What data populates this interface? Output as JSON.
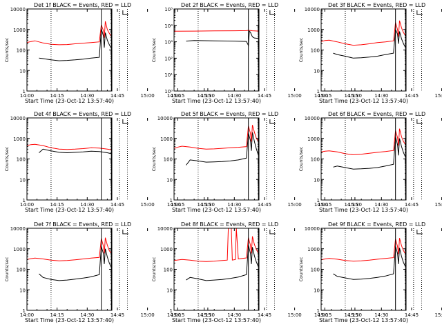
{
  "figure": {
    "x_ticks": [
      "14:00",
      "14:15",
      "14:30",
      "14:45",
      "15:00",
      "15:15",
      "15:30"
    ],
    "ylabel": "Counts/sec",
    "xlabel": "Start Time (23-Oct-12 13:57:40)"
  },
  "colors": {
    "events": "#000000",
    "lld": "#ff0000",
    "axes": "#000000"
  },
  "chart_data": [
    {
      "type": "line",
      "title": "Det 1f BLACK = Events, RED = LLD",
      "y_scale": "log",
      "ylim": [
        1,
        10000
      ],
      "yticks": [
        "1",
        "10",
        "100",
        "1000",
        "10000"
      ],
      "y_tick_values": [
        1,
        10,
        100,
        1000,
        10000
      ],
      "x_range_min": [
        0,
        42
      ],
      "dotted_lines_min": [
        12,
        46,
        50
      ],
      "solid_lines_min": [
        37,
        42
      ],
      "series": [
        {
          "name": "Events",
          "color": "#000000",
          "x": [
            6,
            8,
            12,
            16,
            20,
            24,
            28,
            32,
            36,
            37,
            38,
            38.5,
            39,
            40,
            41,
            42
          ],
          "y": [
            40,
            38,
            33,
            30,
            31,
            33,
            36,
            40,
            44,
            1100,
            500,
            130,
            700,
            300,
            180,
            120
          ]
        },
        {
          "name": "LLD",
          "color": "#ff0000",
          "x": [
            -2.3,
            0,
            2,
            4,
            8,
            12,
            16,
            20,
            24,
            28,
            32,
            36,
            37,
            38,
            38.5,
            39,
            40,
            41,
            42
          ],
          "y": [
            210,
            230,
            260,
            280,
            220,
            190,
            180,
            185,
            200,
            215,
            230,
            250,
            1700,
            900,
            400,
            2500,
            1000,
            650,
            450
          ]
        }
      ]
    },
    {
      "type": "line",
      "title": "Det 2f BLACK = Events, RED = LLD",
      "y_scale": "log",
      "ylim": [
        1,
        100000
      ],
      "yticks": [
        "10⁰",
        "10¹",
        "10²",
        "10³",
        "10⁴",
        "10⁵"
      ],
      "y_tick_values": [
        1,
        10,
        100,
        1000,
        10000,
        100000
      ],
      "x_range_min": [
        0,
        42
      ],
      "dotted_lines_min": [
        12,
        46,
        50
      ],
      "solid_lines_min": [
        37,
        42
      ],
      "series": [
        {
          "name": "Events",
          "color": "#000000",
          "x": [
            6,
            10,
            20,
            30,
            36,
            37,
            37.5,
            38,
            39,
            40,
            42
          ],
          "y": [
            1100,
            1200,
            1150,
            1100,
            1050,
            600,
            4500,
            3800,
            2000,
            1700,
            1600
          ]
        },
        {
          "name": "LLD",
          "color": "#ff0000",
          "x": [
            -2.3,
            0,
            10,
            20,
            30,
            36,
            37,
            38,
            39,
            40,
            42
          ],
          "y": [
            4300,
            4400,
            4500,
            4600,
            4700,
            4800,
            5000,
            4900,
            4700,
            4600,
            4500
          ]
        }
      ]
    },
    {
      "type": "line",
      "title": "Det 3f BLACK = Events, RED = LLD",
      "y_scale": "log",
      "ylim": [
        1,
        10000
      ],
      "yticks": [
        "1",
        "10",
        "100",
        "1000",
        "10000"
      ],
      "y_tick_values": [
        1,
        10,
        100,
        1000,
        10000
      ],
      "x_range_min": [
        0,
        42
      ],
      "dotted_lines_min": [
        12,
        46,
        50
      ],
      "solid_lines_min": [
        37,
        42
      ],
      "series": [
        {
          "name": "Events",
          "color": "#000000",
          "x": [
            6,
            8,
            12,
            16,
            20,
            24,
            28,
            32,
            36,
            37,
            38,
            38.5,
            39,
            40,
            41,
            42
          ],
          "y": [
            70,
            60,
            50,
            40,
            42,
            45,
            50,
            60,
            70,
            1000,
            600,
            200,
            800,
            350,
            200,
            130
          ]
        },
        {
          "name": "LLD",
          "color": "#ff0000",
          "x": [
            -2.3,
            0,
            2,
            4,
            8,
            12,
            16,
            20,
            24,
            28,
            32,
            36,
            37,
            38,
            38.5,
            39,
            40,
            41,
            42
          ],
          "y": [
            240,
            260,
            290,
            300,
            250,
            200,
            170,
            180,
            200,
            230,
            250,
            280,
            2200,
            1000,
            450,
            2700,
            1200,
            700,
            500
          ]
        }
      ]
    },
    {
      "type": "line",
      "title": "Det 4f BLACK = Events, RED = LLD",
      "y_scale": "log",
      "ylim": [
        1,
        10000
      ],
      "yticks": [
        "1",
        "10",
        "100",
        "1000",
        "10000"
      ],
      "y_tick_values": [
        1,
        10,
        100,
        1000,
        10000
      ],
      "x_range_min": [
        0,
        42
      ],
      "dotted_lines_min": [
        12,
        46,
        50
      ],
      "solid_lines_min": [
        37,
        42
      ],
      "series": [
        {
          "name": "Events",
          "color": "#000000",
          "x": [
            6,
            8,
            12,
            16,
            20,
            24,
            28,
            32,
            36,
            40,
            42
          ],
          "y": [
            200,
            300,
            250,
            210,
            200,
            210,
            220,
            240,
            230,
            200,
            180
          ]
        },
        {
          "name": "LLD",
          "color": "#ff0000",
          "x": [
            -2.3,
            0,
            2,
            4,
            8,
            12,
            16,
            20,
            24,
            28,
            32,
            36,
            40,
            42
          ],
          "y": [
            400,
            450,
            500,
            520,
            450,
            350,
            300,
            290,
            300,
            320,
            350,
            340,
            300,
            280
          ]
        }
      ]
    },
    {
      "type": "line",
      "title": "Det 5f BLACK = Events, RED = LLD",
      "y_scale": "log",
      "ylim": [
        1,
        10000
      ],
      "yticks": [
        "1",
        "10",
        "100",
        "1000",
        "10000"
      ],
      "y_tick_values": [
        1,
        10,
        100,
        1000,
        10000
      ],
      "x_range_min": [
        0,
        42
      ],
      "dotted_lines_min": [
        12,
        46,
        50
      ],
      "solid_lines_min": [
        37,
        42
      ],
      "series": [
        {
          "name": "Events",
          "color": "#000000",
          "x": [
            6,
            8,
            12,
            16,
            20,
            24,
            28,
            32,
            36,
            37,
            38,
            38.5,
            39,
            40,
            41,
            42
          ],
          "y": [
            50,
            90,
            80,
            70,
            72,
            75,
            80,
            90,
            110,
            1800,
            800,
            250,
            2000,
            700,
            300,
            150
          ]
        },
        {
          "name": "LLD",
          "color": "#ff0000",
          "x": [
            -2.3,
            0,
            2,
            4,
            8,
            12,
            16,
            20,
            24,
            28,
            32,
            36,
            37,
            38,
            38.5,
            39,
            40,
            41,
            42
          ],
          "y": [
            300,
            330,
            380,
            420,
            380,
            330,
            300,
            310,
            330,
            350,
            370,
            400,
            4000,
            1800,
            700,
            4500,
            2000,
            1000,
            700
          ]
        }
      ]
    },
    {
      "type": "line",
      "title": "Det 6f BLACK = Events, RED = LLD",
      "y_scale": "log",
      "ylim": [
        1,
        10000
      ],
      "yticks": [
        "1",
        "10",
        "100",
        "1000",
        "10000"
      ],
      "y_tick_values": [
        1,
        10,
        100,
        1000,
        10000
      ],
      "x_range_min": [
        0,
        42
      ],
      "dotted_lines_min": [
        12,
        46,
        50
      ],
      "solid_lines_min": [
        37,
        42
      ],
      "series": [
        {
          "name": "Events",
          "color": "#000000",
          "x": [
            6,
            8,
            12,
            16,
            20,
            24,
            28,
            32,
            36,
            37,
            38,
            38.5,
            39,
            40,
            41,
            42
          ],
          "y": [
            40,
            45,
            38,
            32,
            33,
            35,
            38,
            45,
            55,
            1200,
            500,
            150,
            1000,
            400,
            200,
            120
          ]
        },
        {
          "name": "LLD",
          "color": "#ff0000",
          "x": [
            -2.3,
            0,
            2,
            4,
            8,
            12,
            16,
            20,
            24,
            28,
            32,
            36,
            37,
            38,
            38.5,
            39,
            40,
            41,
            42
          ],
          "y": [
            200,
            220,
            240,
            250,
            220,
            180,
            160,
            170,
            190,
            210,
            230,
            260,
            2400,
            1100,
            450,
            3000,
            1200,
            700,
            500
          ]
        }
      ]
    },
    {
      "type": "line",
      "title": "Det 7f BLACK = Events, RED = LLD",
      "y_scale": "log",
      "ylim": [
        1,
        10000
      ],
      "yticks": [
        "1",
        "10",
        "100",
        "1000",
        "10000"
      ],
      "y_tick_values": [
        1,
        10,
        100,
        1000,
        10000
      ],
      "x_range_min": [
        0,
        42
      ],
      "dotted_lines_min": [
        12,
        46,
        50
      ],
      "solid_lines_min": [
        37,
        42
      ],
      "series": [
        {
          "name": "Events",
          "color": "#000000",
          "x": [
            6,
            8,
            12,
            16,
            20,
            24,
            28,
            32,
            36,
            37,
            38,
            38.5,
            39,
            40,
            41,
            42
          ],
          "y": [
            60,
            40,
            32,
            28,
            30,
            33,
            37,
            43,
            55,
            1300,
            600,
            180,
            1000,
            400,
            200,
            120
          ]
        },
        {
          "name": "LLD",
          "color": "#ff0000",
          "x": [
            -2.3,
            0,
            2,
            4,
            8,
            12,
            16,
            20,
            24,
            28,
            32,
            36,
            37,
            38,
            38.5,
            39,
            40,
            41,
            42
          ],
          "y": [
            280,
            300,
            330,
            350,
            320,
            280,
            260,
            270,
            290,
            320,
            350,
            380,
            3200,
            1400,
            600,
            3500,
            1500,
            800,
            600
          ]
        }
      ]
    },
    {
      "type": "line",
      "title": "Det 8f BLACK = Events, RED = LLD",
      "y_scale": "log",
      "ylim": [
        1,
        10000
      ],
      "yticks": [
        "1",
        "10",
        "100",
        "1000",
        "10000"
      ],
      "y_tick_values": [
        1,
        10,
        100,
        1000,
        10000
      ],
      "x_range_min": [
        0,
        42
      ],
      "dotted_lines_min": [
        12,
        46,
        50
      ],
      "solid_lines_min": [
        37,
        42
      ],
      "series": [
        {
          "name": "Events",
          "color": "#000000",
          "x": [
            6,
            8,
            12,
            16,
            20,
            24,
            28,
            32,
            36,
            37,
            38,
            38.5,
            39,
            40,
            41,
            42
          ],
          "y": [
            30,
            40,
            34,
            28,
            30,
            32,
            36,
            42,
            55,
            1500,
            600,
            180,
            1200,
            450,
            220,
            130
          ]
        },
        {
          "name": "LLD",
          "color": "#ff0000",
          "x": [
            -2.3,
            0,
            4,
            8,
            12,
            16,
            20,
            24,
            26.5,
            27,
            28.5,
            29,
            30.5,
            31,
            32,
            36,
            37,
            38,
            38.5,
            39,
            40,
            41,
            42
          ],
          "y": [
            250,
            270,
            300,
            280,
            250,
            240,
            250,
            270,
            280,
            10000,
            10000,
            280,
            300,
            10000,
            320,
            360,
            3500,
            1500,
            600,
            4000,
            1600,
            900,
            600
          ]
        }
      ]
    },
    {
      "type": "line",
      "title": "Det 9f BLACK = Events, RED = LLD",
      "y_scale": "log",
      "ylim": [
        1,
        10000
      ],
      "yticks": [
        "1",
        "10",
        "100",
        "1000",
        "10000"
      ],
      "y_tick_values": [
        1,
        10,
        100,
        1000,
        10000
      ],
      "x_range_min": [
        0,
        42
      ],
      "dotted_lines_min": [
        12,
        46,
        50
      ],
      "solid_lines_min": [
        37,
        42
      ],
      "series": [
        {
          "name": "Events",
          "color": "#000000",
          "x": [
            6,
            8,
            12,
            16,
            20,
            24,
            28,
            32,
            36,
            37,
            38,
            38.5,
            39,
            40,
            41,
            42
          ],
          "y": [
            60,
            45,
            38,
            32,
            33,
            36,
            40,
            47,
            60,
            1300,
            600,
            180,
            1100,
            420,
            210,
            130
          ]
        },
        {
          "name": "LLD",
          "color": "#ff0000",
          "x": [
            -2.3,
            0,
            2,
            4,
            8,
            12,
            16,
            20,
            24,
            28,
            32,
            36,
            37,
            38,
            38.5,
            39,
            40,
            41,
            42
          ],
          "y": [
            260,
            290,
            320,
            340,
            310,
            270,
            250,
            260,
            280,
            310,
            340,
            370,
            3000,
            1300,
            550,
            3300,
            1400,
            800,
            550
          ]
        }
      ]
    }
  ]
}
